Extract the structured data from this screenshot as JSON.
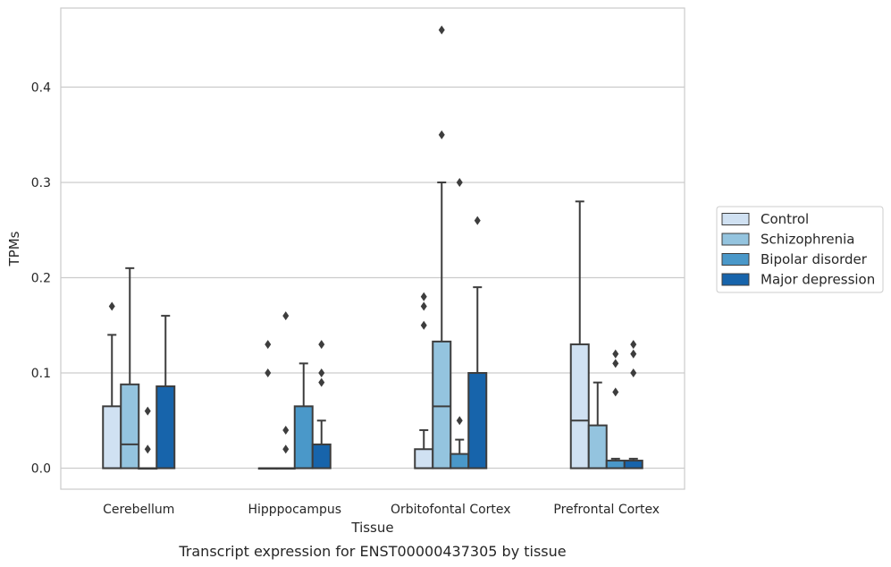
{
  "caption": "Transcript expression for ENST00000437305 by tissue",
  "chart_data": {
    "type": "boxplot",
    "xlabel": "Tissue",
    "ylabel": "TPMs",
    "ylim": [
      -0.022,
      0.483
    ],
    "yticks": [
      0.0,
      0.1,
      0.2,
      0.3,
      0.4
    ],
    "ytick_labels": [
      "0.0",
      "0.1",
      "0.2",
      "0.3",
      "0.4"
    ],
    "grid": "horizontal",
    "legend_position": "right",
    "categories": [
      "Cerebellum",
      "Hipppocampus",
      "Orbitofontal Cortex",
      "Prefrontal Cortex"
    ],
    "series": [
      {
        "name": "Control",
        "color": "#d0e1f2",
        "boxes": [
          {
            "q1": 0.0,
            "median": 0.0,
            "q3": 0.065,
            "whisker_low": 0.0,
            "whisker_high": 0.14,
            "outliers": [
              0.17
            ]
          },
          {
            "q1": 0.0,
            "median": 0.0,
            "q3": 0.0,
            "whisker_low": 0.0,
            "whisker_high": 0.0,
            "outliers": [
              0.1,
              0.13
            ]
          },
          {
            "q1": 0.0,
            "median": 0.0,
            "q3": 0.02,
            "whisker_low": 0.0,
            "whisker_high": 0.04,
            "outliers": [
              0.15,
              0.17,
              0.18
            ]
          },
          {
            "q1": 0.0,
            "median": 0.05,
            "q3": 0.13,
            "whisker_low": 0.0,
            "whisker_high": 0.28,
            "outliers": []
          }
        ]
      },
      {
        "name": "Schizophrenia",
        "color": "#94c4df",
        "boxes": [
          {
            "q1": 0.0,
            "median": 0.025,
            "q3": 0.088,
            "whisker_low": 0.0,
            "whisker_high": 0.21,
            "outliers": []
          },
          {
            "q1": 0.0,
            "median": 0.0,
            "q3": 0.0,
            "whisker_low": 0.0,
            "whisker_high": 0.0,
            "outliers": [
              0.02,
              0.04,
              0.16
            ]
          },
          {
            "q1": 0.0,
            "median": 0.065,
            "q3": 0.133,
            "whisker_low": 0.0,
            "whisker_high": 0.3,
            "outliers": [
              0.35,
              0.46
            ]
          },
          {
            "q1": 0.0,
            "median": 0.0,
            "q3": 0.045,
            "whisker_low": 0.0,
            "whisker_high": 0.09,
            "outliers": []
          }
        ]
      },
      {
        "name": "Bipolar disorder",
        "color": "#4a98c9",
        "boxes": [
          {
            "q1": 0.0,
            "median": 0.0,
            "q3": 0.0,
            "whisker_low": 0.0,
            "whisker_high": 0.0,
            "outliers": [
              0.02,
              0.06
            ]
          },
          {
            "q1": 0.0,
            "median": 0.0,
            "q3": 0.065,
            "whisker_low": 0.0,
            "whisker_high": 0.11,
            "outliers": []
          },
          {
            "q1": 0.0,
            "median": 0.0,
            "q3": 0.015,
            "whisker_low": 0.0,
            "whisker_high": 0.03,
            "outliers": [
              0.05,
              0.3
            ]
          },
          {
            "q1": 0.0,
            "median": 0.0,
            "q3": 0.008,
            "whisker_low": 0.0,
            "whisker_high": 0.01,
            "outliers": [
              0.08,
              0.11,
              0.12
            ]
          }
        ]
      },
      {
        "name": "Major depression",
        "color": "#1764ab",
        "boxes": [
          {
            "q1": 0.0,
            "median": 0.0,
            "q3": 0.086,
            "whisker_low": 0.0,
            "whisker_high": 0.16,
            "outliers": []
          },
          {
            "q1": 0.0,
            "median": 0.0,
            "q3": 0.025,
            "whisker_low": 0.0,
            "whisker_high": 0.05,
            "outliers": [
              0.09,
              0.1,
              0.13
            ]
          },
          {
            "q1": 0.0,
            "median": 0.0,
            "q3": 0.1,
            "whisker_low": 0.0,
            "whisker_high": 0.19,
            "outliers": [
              0.26
            ]
          },
          {
            "q1": 0.0,
            "median": 0.0,
            "q3": 0.008,
            "whisker_low": 0.0,
            "whisker_high": 0.01,
            "outliers": [
              0.1,
              0.12,
              0.13
            ]
          }
        ]
      }
    ]
  }
}
